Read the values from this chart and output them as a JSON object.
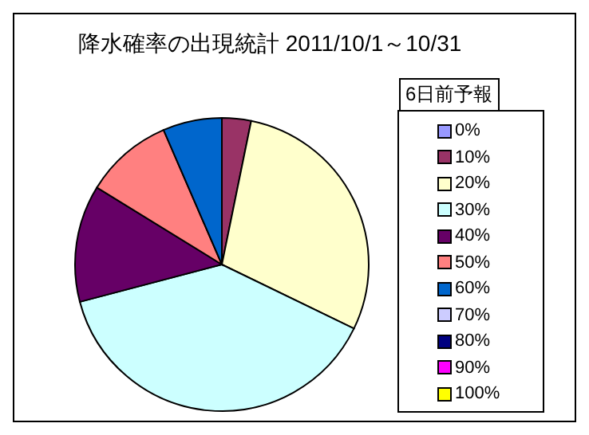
{
  "chart_data": {
    "type": "pie",
    "title": "降水確率の出現統計 2011/10/1～10/31",
    "legend_title": "6日前予報",
    "categories": [
      "0%",
      "10%",
      "20%",
      "30%",
      "40%",
      "50%",
      "60%",
      "70%",
      "80%",
      "90%",
      "100%"
    ],
    "values": [
      0,
      3.2,
      29.0,
      38.7,
      12.9,
      9.7,
      6.5,
      0,
      0,
      0,
      0
    ],
    "colors": [
      "#9999ff",
      "#993366",
      "#ffffcc",
      "#ccffff",
      "#660066",
      "#ff8080",
      "#0066cc",
      "#ccccff",
      "#000080",
      "#ff00ff",
      "#ffff00"
    ],
    "legend": "right"
  }
}
